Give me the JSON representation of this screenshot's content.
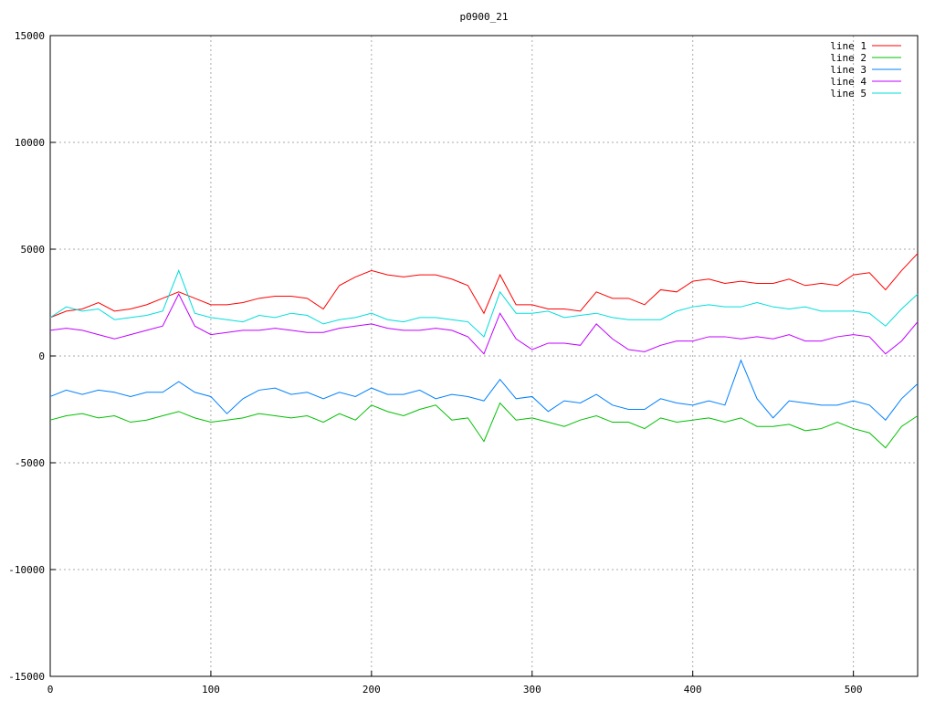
{
  "chart_data": {
    "type": "line",
    "title": "p0900_21",
    "x": [
      0,
      10,
      20,
      30,
      40,
      50,
      60,
      70,
      80,
      90,
      100,
      110,
      120,
      130,
      140,
      150,
      160,
      170,
      180,
      190,
      200,
      210,
      220,
      230,
      240,
      250,
      260,
      270,
      280,
      290,
      300,
      310,
      320,
      330,
      340,
      350,
      360,
      370,
      380,
      390,
      400,
      410,
      420,
      430,
      440,
      450,
      460,
      470,
      480,
      490,
      500,
      510,
      520,
      530,
      540
    ],
    "series": [
      {
        "name": "line 1",
        "color": "#ff0000",
        "values": [
          1800,
          2100,
          2200,
          2500,
          2100,
          2200,
          2400,
          2700,
          3000,
          2700,
          2400,
          2400,
          2500,
          2700,
          2800,
          2800,
          2700,
          2200,
          3300,
          3700,
          4000,
          3800,
          3700,
          3800,
          3800,
          3600,
          3300,
          2000,
          3800,
          2400,
          2400,
          2200,
          2200,
          2100,
          3000,
          2700,
          2700,
          2400,
          3100,
          3000,
          3500,
          3600,
          3400,
          3500,
          3400,
          3400,
          3600,
          3300,
          3400,
          3300,
          3800,
          3900,
          3100,
          4000,
          4800
        ]
      },
      {
        "name": "line 2",
        "color": "#00c000",
        "values": [
          -3000,
          -2800,
          -2700,
          -2900,
          -2800,
          -3100,
          -3000,
          -2800,
          -2600,
          -2900,
          -3100,
          -3000,
          -2900,
          -2700,
          -2800,
          -2900,
          -2800,
          -3100,
          -2700,
          -3000,
          -2300,
          -2600,
          -2800,
          -2500,
          -2300,
          -3000,
          -2900,
          -4000,
          -2200,
          -3000,
          -2900,
          -3100,
          -3300,
          -3000,
          -2800,
          -3100,
          -3100,
          -3400,
          -2900,
          -3100,
          -3000,
          -2900,
          -3100,
          -2900,
          -3300,
          -3300,
          -3200,
          -3500,
          -3400,
          -3100,
          -3400,
          -3600,
          -4300,
          -3300,
          -2800
        ]
      },
      {
        "name": "line 3",
        "color": "#0080ff",
        "values": [
          -1900,
          -1600,
          -1800,
          -1600,
          -1700,
          -1900,
          -1700,
          -1700,
          -1200,
          -1700,
          -1900,
          -2700,
          -2000,
          -1600,
          -1500,
          -1800,
          -1700,
          -2000,
          -1700,
          -1900,
          -1500,
          -1800,
          -1800,
          -1600,
          -2000,
          -1800,
          -1900,
          -2100,
          -1100,
          -2000,
          -1900,
          -2600,
          -2100,
          -2200,
          -1800,
          -2300,
          -2500,
          -2500,
          -2000,
          -2200,
          -2300,
          -2100,
          -2300,
          -200,
          -2000,
          -2900,
          -2100,
          -2200,
          -2300,
          -2300,
          -2100,
          -2300,
          -3000,
          -2000,
          -1300
        ]
      },
      {
        "name": "line 4",
        "color": "#c000ff",
        "values": [
          1200,
          1300,
          1200,
          1000,
          800,
          1000,
          1200,
          1400,
          2900,
          1400,
          1000,
          1100,
          1200,
          1200,
          1300,
          1200,
          1100,
          1100,
          1300,
          1400,
          1500,
          1300,
          1200,
          1200,
          1300,
          1200,
          900,
          100,
          2000,
          800,
          300,
          600,
          600,
          500,
          1500,
          800,
          300,
          200,
          500,
          700,
          700,
          900,
          900,
          800,
          900,
          800,
          1000,
          700,
          700,
          900,
          1000,
          900,
          100,
          700,
          1600
        ]
      },
      {
        "name": "line 5",
        "color": "#00dddd",
        "values": [
          1800,
          2300,
          2100,
          2200,
          1700,
          1800,
          1900,
          2100,
          4000,
          2000,
          1800,
          1700,
          1600,
          1900,
          1800,
          2000,
          1900,
          1500,
          1700,
          1800,
          2000,
          1700,
          1600,
          1800,
          1800,
          1700,
          1600,
          900,
          3000,
          2000,
          2000,
          2100,
          1800,
          1900,
          2000,
          1800,
          1700,
          1700,
          1700,
          2100,
          2300,
          2400,
          2300,
          2300,
          2500,
          2300,
          2200,
          2300,
          2100,
          2100,
          2100,
          2000,
          1400,
          2200,
          2900
        ]
      }
    ],
    "xlim": [
      0,
      540
    ],
    "xticks": [
      0,
      100,
      200,
      300,
      400,
      500
    ],
    "ylim": [
      -15000,
      15000
    ],
    "yticks": [
      -15000,
      -10000,
      -5000,
      0,
      5000,
      10000,
      15000
    ],
    "grid": true,
    "legend": "top-right"
  }
}
